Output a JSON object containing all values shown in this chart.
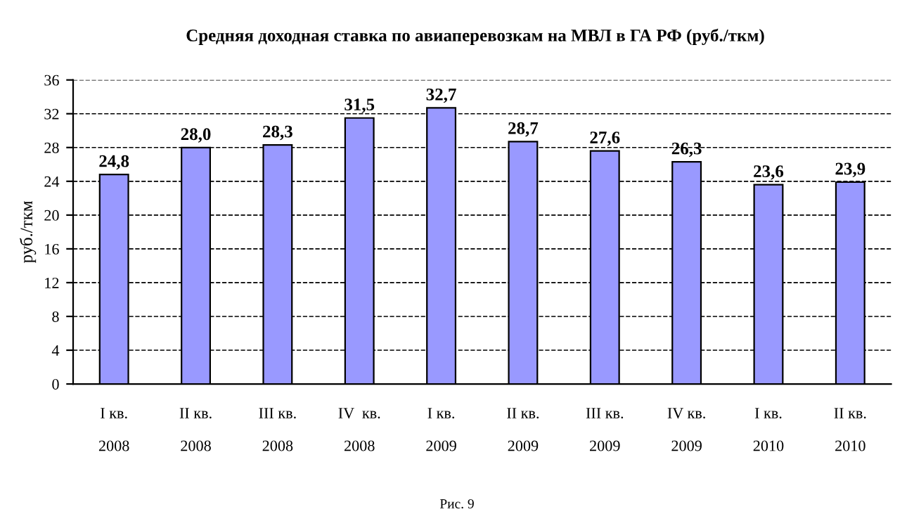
{
  "chart_data": {
    "type": "bar",
    "title": "Средняя доходная ставка по авиаперевозкам на МВЛ в ГА РФ (руб./ткм)",
    "ylabel": "руб./ткм",
    "categories": [
      "I кв.\n\n2008",
      "II кв.\n\n2008",
      "III кв.\n\n2008",
      "IV  кв.\n\n2008",
      "I кв.\n\n2009",
      "II кв.\n\n2009",
      "III кв.\n\n2009",
      "IV кв.\n\n2009",
      "I кв.\n\n2010",
      "II кв.\n\n2010"
    ],
    "values": [
      24.8,
      28.0,
      28.3,
      31.5,
      32.7,
      28.7,
      27.6,
      26.3,
      23.6,
      23.9
    ],
    "value_labels": [
      "24,8",
      "28,0",
      "28,3",
      "31,5",
      "32,7",
      "28,7",
      "27,6",
      "26,3",
      "23,6",
      "23,9"
    ],
    "color": "#9999ff",
    "ylim": [
      0,
      36
    ],
    "yticks": [
      0,
      4,
      8,
      12,
      16,
      20,
      24,
      28,
      32,
      36
    ],
    "grid": "y",
    "legend": false,
    "annotations": [
      "Рис. 9"
    ]
  }
}
